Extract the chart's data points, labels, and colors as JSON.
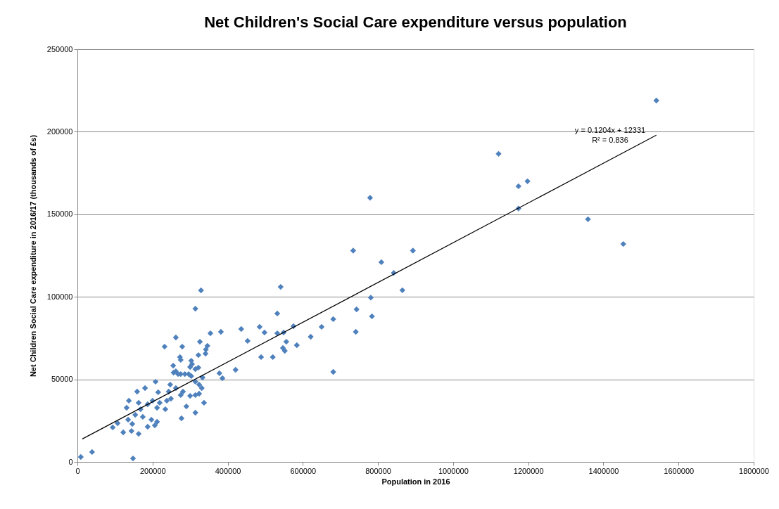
{
  "chart_data": {
    "type": "scatter",
    "title": "Net Children's Social Care expenditure versus population",
    "xlabel": "Population  in 2016",
    "ylabel": "Net Children  Social  Care expenditure in 2016/17 (thousands of £s)",
    "xlim": [
      0,
      1800000
    ],
    "xticks": [
      0,
      200000,
      400000,
      600000,
      800000,
      1000000,
      1200000,
      1400000,
      1600000,
      1800000
    ],
    "ylim": [
      0,
      250000
    ],
    "yticks": [
      0,
      50000,
      100000,
      150000,
      200000,
      250000
    ],
    "grid": "y",
    "legend": false,
    "series": [
      {
        "marker": "diamond",
        "color": "#4f81bd",
        "x": [
          1541000,
          1121000,
          1174000,
          1198000,
          1174000,
          1359000,
          1453000,
          779000,
          734000,
          893000,
          809000,
          842000,
          781000,
          865000,
          743000,
          784000,
          681000,
          650000,
          621000,
          584000,
          741000,
          681000,
          329000,
          541000,
          314000,
          532000,
          354000,
          382000,
          436000,
          485000,
          498000,
          453000,
          575000,
          532000,
          549000,
          556000,
          547000,
          552000,
          489000,
          520000,
          421000,
          378000,
          386000,
          262000,
          279000,
          326000,
          346000,
          342000,
          341000,
          322000,
          273000,
          275000,
          303000,
          305000,
          314000,
          322000,
          300000,
          262000,
          275000,
          286000,
          296000,
          303000,
          333000,
          314000,
          324000,
          331000,
          262000,
          281000,
          275000,
          300000,
          314000,
          324000,
          337000,
          290000,
          314000,
          277000,
          232000,
          255000,
          256000,
          268000,
          208000,
          247000,
          159000,
          180000,
          215000,
          243000,
          137000,
          163000,
          200000,
          219000,
          238000,
          249000,
          187000,
          212000,
          234000,
          131000,
          168000,
          135000,
          154000,
          174000,
          197000,
          212000,
          107000,
          94000,
          122000,
          144000,
          163000,
          187000,
          206000,
          146000,
          9000,
          39000,
          148000
        ],
        "values": [
          218900,
          186600,
          167000,
          170000,
          153500,
          147000,
          132000,
          160000,
          128000,
          128000,
          121000,
          114500,
          99500,
          104000,
          92400,
          88200,
          86500,
          81800,
          75800,
          70700,
          78800,
          54500,
          103900,
          106000,
          92800,
          89900,
          77900,
          78800,
          80500,
          81800,
          78400,
          73300,
          82200,
          77900,
          78400,
          72800,
          69000,
          67300,
          63500,
          63500,
          55800,
          53700,
          50700,
          75400,
          69800,
          72800,
          70300,
          68100,
          65600,
          64700,
          63500,
          61800,
          61300,
          59200,
          56200,
          57100,
          57500,
          54900,
          53200,
          53200,
          53200,
          52000,
          51100,
          48600,
          46800,
          44700,
          44700,
          42600,
          40500,
          40000,
          40500,
          41300,
          35800,
          33600,
          29800,
          26400,
          69800,
          58300,
          54100,
          53200,
          48600,
          46800,
          42600,
          44700,
          42200,
          42600,
          37100,
          35800,
          37100,
          35800,
          37100,
          38300,
          34900,
          32800,
          31900,
          32800,
          31900,
          25600,
          28500,
          27300,
          25600,
          24300,
          23400,
          20900,
          17900,
          18700,
          17000,
          21300,
          22100,
          23000,
          3000,
          6000,
          2100
        ]
      },
      {
        "type": "line",
        "marker": "none",
        "color": "#000000",
        "x": [
          13000,
          1541000
        ],
        "values": [
          13900,
          197900
        ]
      }
    ],
    "annotations": [
      "y = 0.1204x + 12331",
      "R² = 0.836"
    ]
  }
}
